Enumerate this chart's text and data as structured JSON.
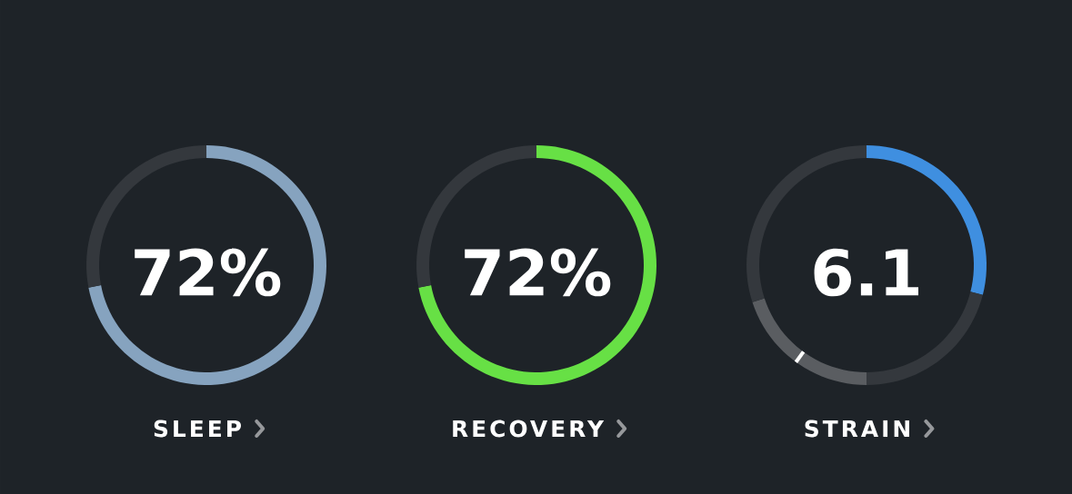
{
  "chart_data": [
    {
      "type": "donut",
      "title": "SLEEP",
      "annotations": [
        "72%"
      ],
      "categories": [
        null,
        null
      ],
      "values": [
        72,
        28
      ],
      "colors": [
        "#86a3bf",
        "#34383d"
      ]
    },
    {
      "type": "donut",
      "title": "RECOVERY",
      "annotations": [
        "72%"
      ],
      "categories": [
        null,
        null
      ],
      "values": [
        72,
        28
      ],
      "colors": [
        "#67e045",
        "#34383d"
      ]
    },
    {
      "type": "donut",
      "title": "STRAIN",
      "annotations": [
        "6.1"
      ],
      "categories": [
        null,
        null,
        null,
        null
      ],
      "values": [
        29,
        21,
        20,
        30
      ],
      "colors": [
        "#3f8fe0",
        "#34383d",
        "#5a5d61",
        "#34383d"
      ]
    }
  ]
}
